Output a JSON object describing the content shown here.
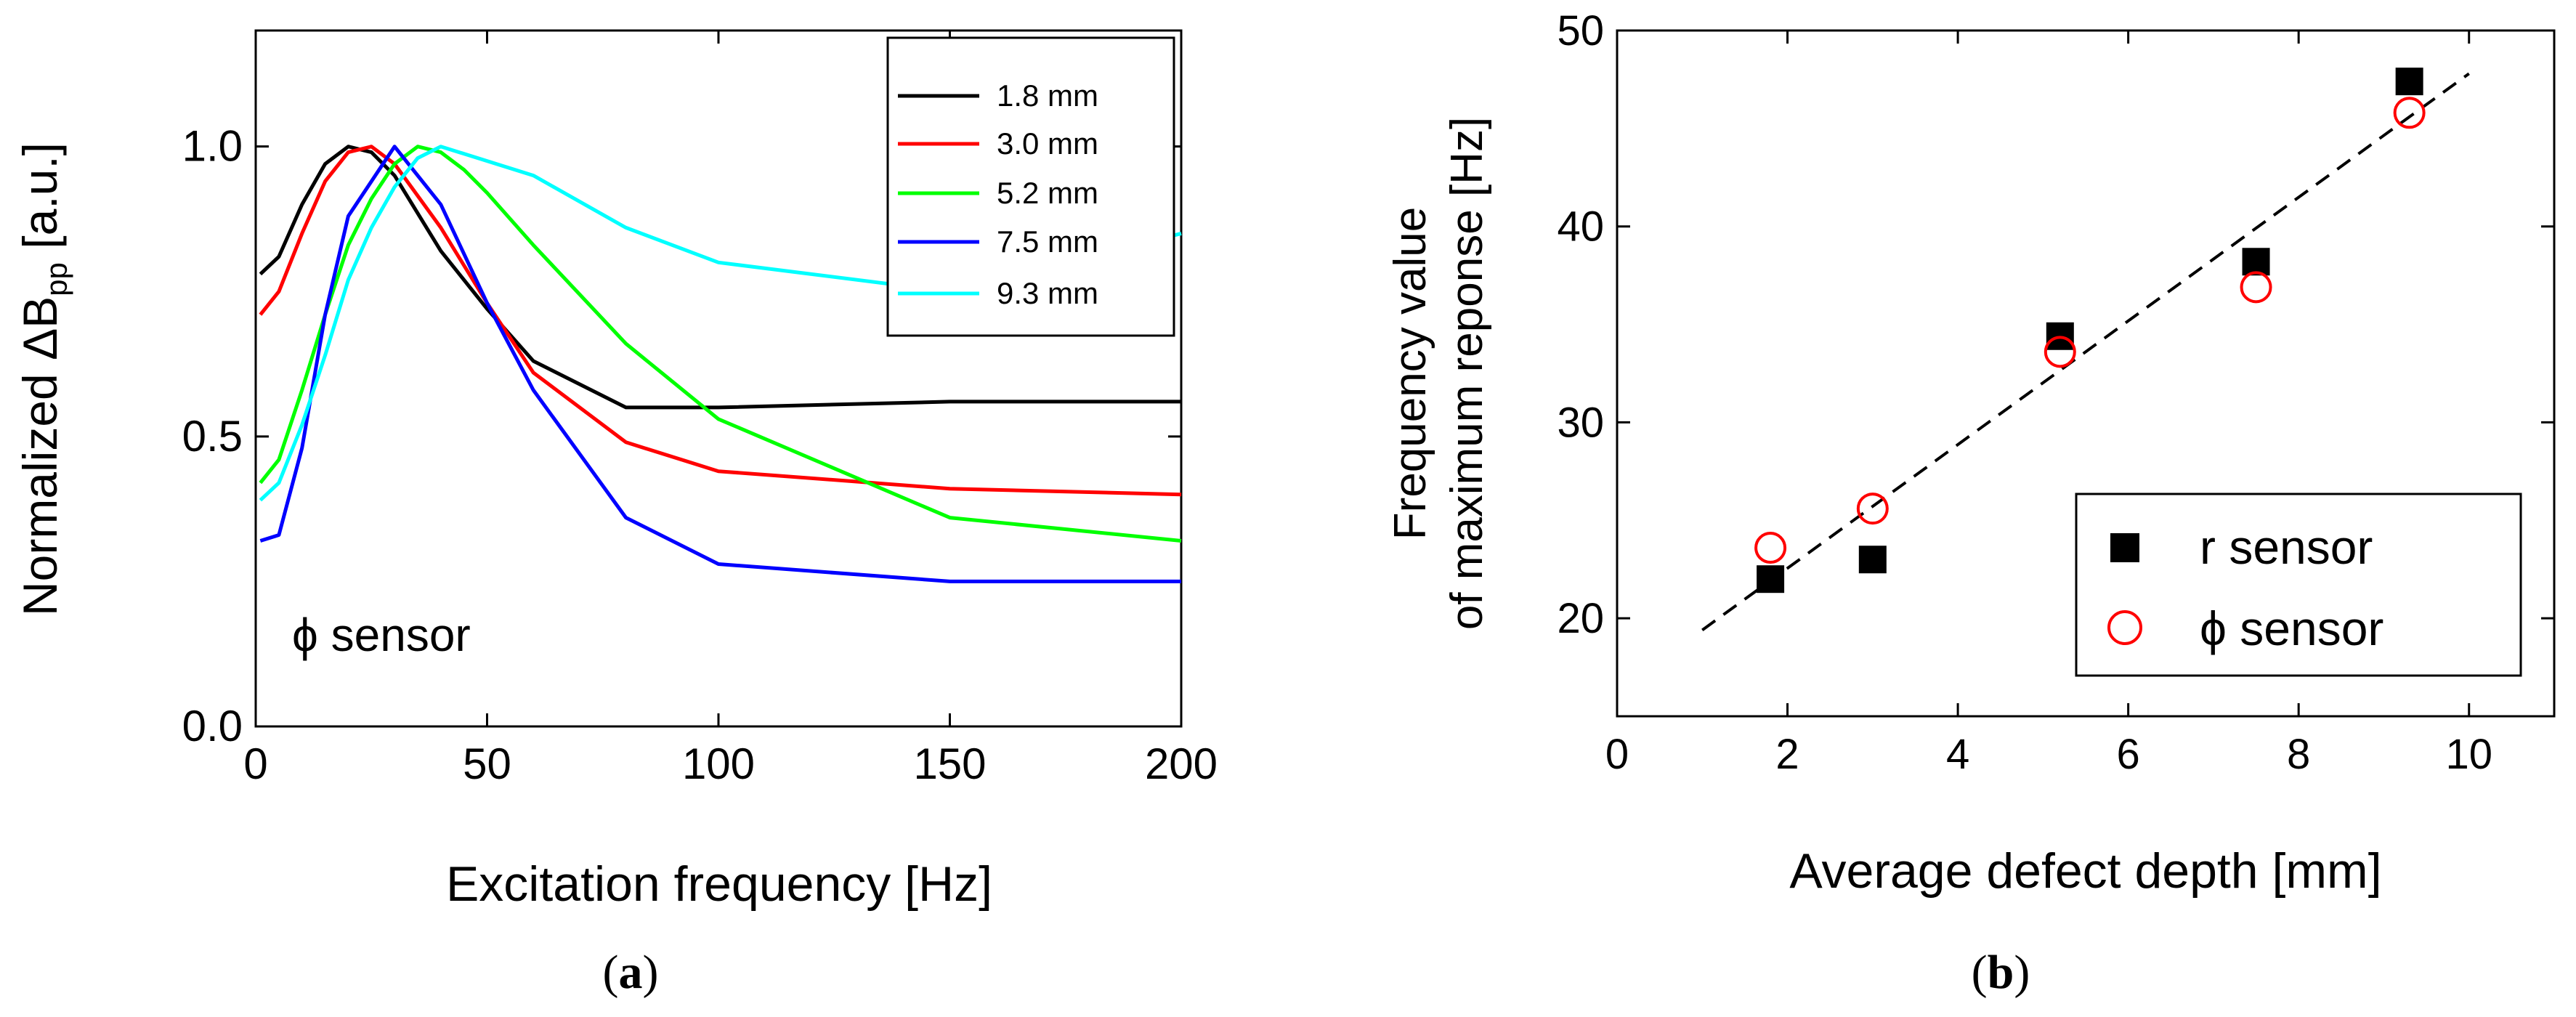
{
  "chart_data": [
    {
      "type": "line",
      "panel": "a",
      "caption_prefix": "(",
      "caption_letter": "a",
      "caption_suffix": ")",
      "xlabel": "Excitation frequency [Hz]",
      "ylabel_main": "Normalized ΔB",
      "ylabel_sub": "pp",
      "ylabel_unit": " [a.u.]",
      "xlim": [
        0,
        200
      ],
      "ylim": [
        0,
        1.2
      ],
      "xticks": [
        0,
        50,
        100,
        150,
        200
      ],
      "yticks": [
        0.0,
        0.5,
        1.0
      ],
      "xtick_labels": [
        "0",
        "50",
        "100",
        "150",
        "200"
      ],
      "ytick_labels": [
        "0.0",
        "0.5",
        "1.0"
      ],
      "annotation": "ϕ sensor",
      "legend_position": "top-right",
      "series": [
        {
          "name": "1.8 mm",
          "color": "#000000",
          "x": [
            1,
            5,
            10,
            15,
            20,
            25,
            30,
            40,
            50,
            60,
            80,
            100,
            150,
            200
          ],
          "y": [
            0.78,
            0.81,
            0.9,
            0.97,
            1.0,
            0.99,
            0.95,
            0.82,
            0.72,
            0.63,
            0.55,
            0.55,
            0.56,
            0.56
          ]
        },
        {
          "name": "3.0 mm",
          "color": "#ff0000",
          "x": [
            1,
            5,
            10,
            15,
            20,
            25,
            30,
            40,
            50,
            60,
            80,
            100,
            150,
            200
          ],
          "y": [
            0.71,
            0.75,
            0.85,
            0.94,
            0.99,
            1.0,
            0.97,
            0.86,
            0.73,
            0.61,
            0.49,
            0.44,
            0.41,
            0.4
          ]
        },
        {
          "name": "5.2 mm",
          "color": "#00ff00",
          "x": [
            1,
            5,
            10,
            15,
            20,
            25,
            30,
            35,
            40,
            45,
            50,
            60,
            80,
            100,
            150,
            200
          ],
          "y": [
            0.42,
            0.46,
            0.58,
            0.71,
            0.83,
            0.91,
            0.97,
            1.0,
            0.99,
            0.96,
            0.92,
            0.83,
            0.66,
            0.53,
            0.36,
            0.32
          ]
        },
        {
          "name": "7.5 mm",
          "color": "#0000ff",
          "x": [
            1,
            5,
            10,
            15,
            20,
            25,
            30,
            40,
            50,
            60,
            80,
            100,
            150,
            200
          ],
          "y": [
            0.32,
            0.33,
            0.48,
            0.71,
            0.88,
            0.94,
            1.0,
            0.9,
            0.73,
            0.58,
            0.36,
            0.28,
            0.25,
            0.25
          ]
        },
        {
          "name": "9.3 mm",
          "color": "#00ffff",
          "x": [
            1,
            5,
            10,
            15,
            20,
            25,
            30,
            35,
            40,
            60,
            80,
            100,
            150,
            200
          ],
          "y": [
            0.39,
            0.42,
            0.52,
            0.64,
            0.77,
            0.86,
            0.93,
            0.98,
            1.0,
            0.95,
            0.86,
            0.8,
            0.75,
            0.85
          ]
        }
      ]
    },
    {
      "type": "scatter",
      "panel": "b",
      "caption_prefix": "(",
      "caption_letter": "b",
      "caption_suffix": ")",
      "xlabel": "Average defect depth [mm]",
      "ylabel_line1": "Frequency value",
      "ylabel_line2": "of maximum reponse [Hz]",
      "xlim": [
        0,
        11
      ],
      "ylim": [
        15,
        50
      ],
      "xticks": [
        0,
        2,
        4,
        6,
        8,
        10
      ],
      "yticks": [
        20,
        30,
        40,
        50
      ],
      "xtick_labels": [
        "0",
        "2",
        "4",
        "6",
        "8",
        "10"
      ],
      "ytick_labels": [
        "20",
        "30",
        "40",
        "50"
      ],
      "legend_position": "bottom-right",
      "series": [
        {
          "name": "r sensor",
          "marker": "filled-square",
          "color": "#000000",
          "x": [
            1.8,
            3.0,
            5.2,
            7.5,
            9.3
          ],
          "y": [
            22.0,
            23.0,
            34.4,
            38.2,
            47.4
          ]
        },
        {
          "name": "ϕ sensor",
          "marker": "open-circle",
          "color": "#ff0000",
          "x": [
            1.8,
            3.0,
            5.2,
            7.5,
            9.3
          ],
          "y": [
            23.6,
            25.6,
            33.6,
            36.9,
            45.8
          ]
        }
      ],
      "fit_line": {
        "style": "dashed",
        "color": "#000000",
        "x": [
          1.0,
          10.0
        ],
        "y": [
          19.4,
          47.8
        ]
      }
    }
  ]
}
